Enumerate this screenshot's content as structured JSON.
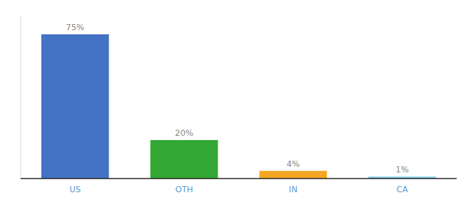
{
  "chart_data": {
    "type": "bar",
    "categories": [
      "US",
      "OTH",
      "IN",
      "CA"
    ],
    "values": [
      75,
      20,
      4,
      1
    ],
    "value_labels": [
      "75%",
      "20%",
      "4%",
      "1%"
    ],
    "colors": [
      "#4472c4",
      "#33a833",
      "#f5a623",
      "#7ec8e3"
    ],
    "ylim": [
      0,
      85
    ],
    "data_labels": true,
    "grid": false,
    "tick_labels": "x"
  }
}
